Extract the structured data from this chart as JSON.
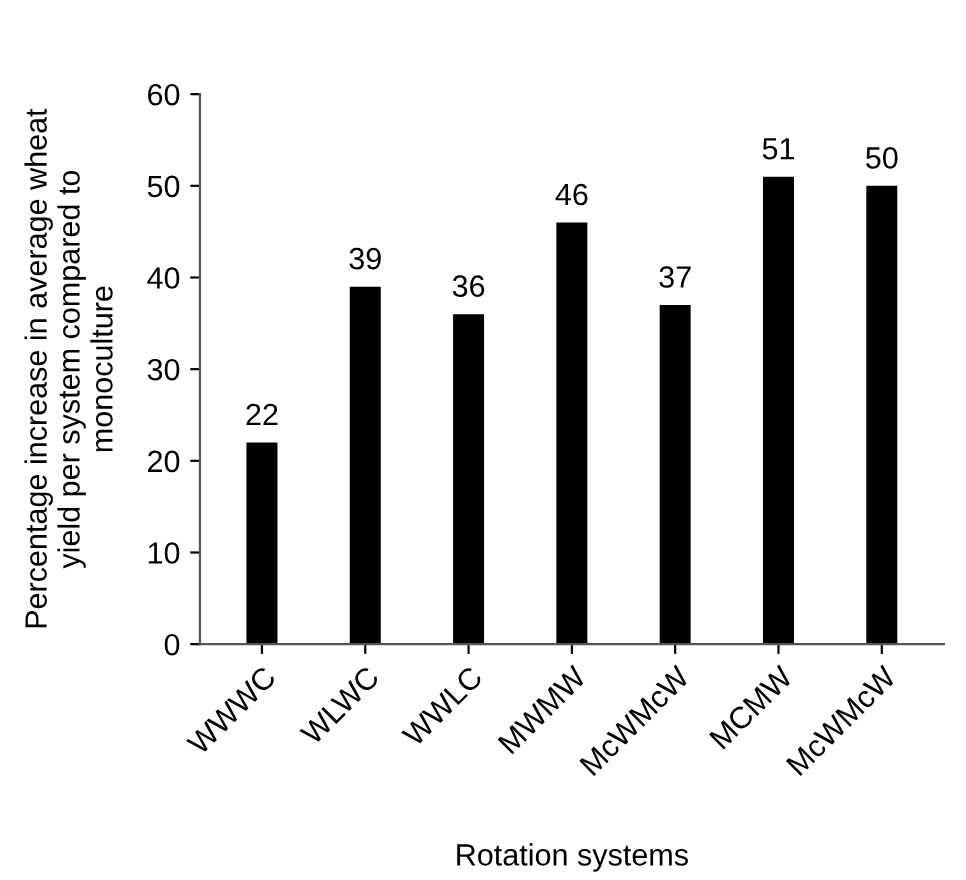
{
  "chart_data": {
    "type": "bar",
    "xlabel": "Rotation systems",
    "ylabel": "Percentage increase in average wheat\nyield per system compared to\nmonoculture",
    "categories": [
      "WWWC",
      "WLWC",
      "WWLC",
      "MWMW",
      "McWMcW",
      "MCMW",
      "McWMcW"
    ],
    "values": [
      22,
      39,
      36,
      46,
      37,
      51,
      50
    ],
    "color": "#000000",
    "ylim": [
      0,
      60
    ],
    "yticks": [
      0,
      10,
      20,
      30,
      40,
      50,
      60
    ],
    "grid": false,
    "data_labels": true
  }
}
